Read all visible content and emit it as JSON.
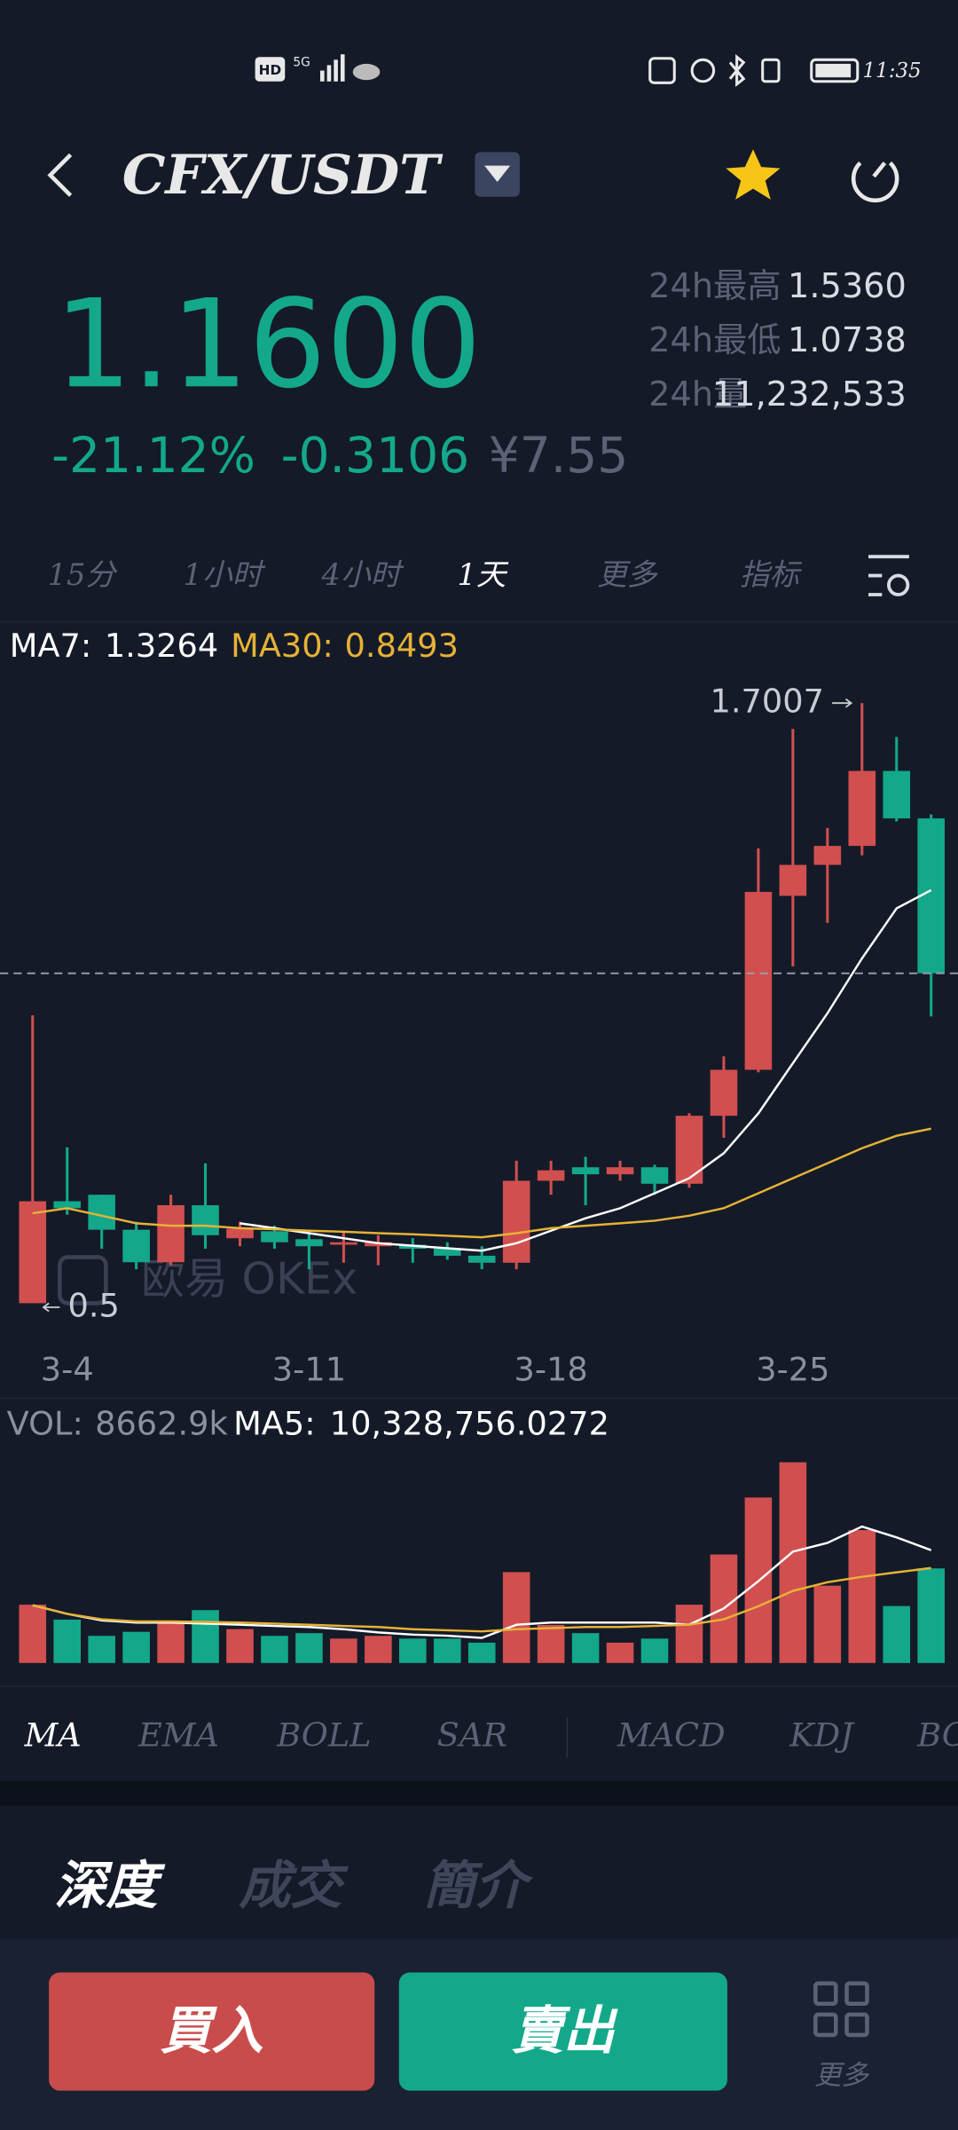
{
  "status_bar": {
    "hd": "HD",
    "network": "5G",
    "time": "11:35"
  },
  "header": {
    "pair": "CFX/USDT"
  },
  "ticker": {
    "price": "1.1600",
    "change_pct": "-21.12%",
    "change": "-0.3106",
    "cny": "¥7.55",
    "high_label": "24h最高",
    "high": "1.5360",
    "low_label": "24h最低",
    "low": "1.0738",
    "vol_label": "24h量",
    "vol": "11,232,533"
  },
  "intervals": [
    "15分",
    "1小时",
    "4小时",
    "1天",
    "更多",
    "指标"
  ],
  "watermark": "欧易 OKEx",
  "chart_data": {
    "type": "candlestick",
    "categories": [
      null,
      "3-4",
      null,
      null,
      null,
      null,
      null,
      null,
      "3-11",
      null,
      null,
      null,
      null,
      null,
      null,
      "3-18",
      null,
      null,
      null,
      null,
      null,
      null,
      "3-25",
      null,
      null,
      null,
      null
    ],
    "open": [
      0.5,
      0.704,
      0.717,
      0.647,
      0.582,
      0.696,
      0.63,
      0.644,
      0.628,
      0.617,
      0.614,
      0.617,
      0.609,
      0.595,
      0.581,
      0.745,
      0.772,
      0.758,
      0.772,
      0.739,
      0.875,
      0.967,
      1.315,
      1.377,
      1.415,
      1.565,
      1.47
    ],
    "high": [
      1.076,
      0.812,
      0.717,
      0.663,
      0.717,
      0.78,
      0.663,
      0.655,
      0.641,
      0.641,
      0.636,
      0.63,
      0.622,
      0.614,
      0.785,
      0.785,
      0.793,
      0.785,
      0.777,
      0.88,
      0.994,
      1.41,
      1.649,
      1.451,
      1.7007,
      1.633,
      1.478
    ],
    "low": [
      0.5,
      0.677,
      0.609,
      0.568,
      0.576,
      0.609,
      0.614,
      0.609,
      0.568,
      0.581,
      0.576,
      0.581,
      0.587,
      0.568,
      0.568,
      0.717,
      0.696,
      0.745,
      0.717,
      0.731,
      0.831,
      0.962,
      1.174,
      1.261,
      1.396,
      1.464,
      1.0738
    ],
    "close": [
      0.704,
      0.69,
      0.647,
      0.582,
      0.696,
      0.636,
      0.649,
      0.622,
      0.614,
      0.622,
      0.622,
      0.609,
      0.595,
      0.581,
      0.745,
      0.766,
      0.758,
      0.772,
      0.739,
      0.875,
      0.967,
      1.323,
      1.377,
      1.415,
      1.565,
      1.47,
      1.16
    ],
    "up_color": "#d14f4f",
    "down_color": "#13a88a",
    "ylim": [
      0.432,
      1.858
    ],
    "ma_lines": [
      {
        "name": "MA7:",
        "color": "#ffffff",
        "values": [
          null,
          null,
          null,
          null,
          null,
          null,
          0.66,
          0.65,
          0.64,
          0.63,
          0.62,
          0.615,
          0.61,
          0.605,
          0.62,
          0.645,
          0.67,
          0.69,
          0.72,
          0.75,
          0.8,
          0.88,
          0.98,
          1.08,
          1.19,
          1.29,
          1.3264
        ]
      },
      {
        "name": "MA30:",
        "color": "#e6b236",
        "values": [
          0.68,
          0.69,
          0.675,
          0.66,
          0.655,
          0.655,
          0.65,
          0.648,
          0.645,
          0.643,
          0.64,
          0.638,
          0.635,
          0.632,
          0.64,
          0.65,
          0.655,
          0.66,
          0.665,
          0.675,
          0.69,
          0.72,
          0.75,
          0.78,
          0.81,
          0.835,
          0.8493
        ]
      }
    ],
    "volume": {
      "name": "VOL:",
      "current_label": "8662.9k",
      "values": [
        5340,
        3975,
        2484,
        2857,
        3727,
        4845,
        3106,
        2484,
        2733,
        2236,
        2484,
        2236,
        2236,
        1863,
        8323,
        3478,
        2733,
        1863,
        2236,
        5342,
        9938,
        15155,
        18385,
        7081,
        12174,
        5217,
        8662.9
      ],
      "ylim": [
        0,
        23000
      ]
    },
    "vol_ma": [
      {
        "name": "MA5:",
        "color": "#ffffff",
        "value_label": "10,328,756.0272",
        "values": [
          5300,
          4500,
          3900,
          3700,
          3700,
          3600,
          3500,
          3400,
          3300,
          3100,
          2800,
          2600,
          2500,
          2300,
          3500,
          3700,
          3700,
          3700,
          3700,
          3500,
          5000,
          7500,
          10200,
          11000,
          12500,
          11500,
          10328.7560272
        ]
      },
      {
        "color": "#e6b236",
        "values": [
          5300,
          4500,
          4000,
          3800,
          3800,
          3750,
          3700,
          3600,
          3500,
          3400,
          3300,
          3100,
          3000,
          2900,
          3100,
          3200,
          3300,
          3300,
          3400,
          3500,
          4000,
          5200,
          6600,
          7400,
          7900,
          8300,
          8700
        ]
      }
    ]
  },
  "indicators": [
    "MA",
    "EMA",
    "BOLL",
    "SAR",
    "MACD",
    "KDJ",
    "BOLL"
  ],
  "tabs": [
    "深度",
    "成交",
    "簡介"
  ],
  "actions": {
    "buy": "買入",
    "sell": "賣出",
    "more": "更多"
  }
}
